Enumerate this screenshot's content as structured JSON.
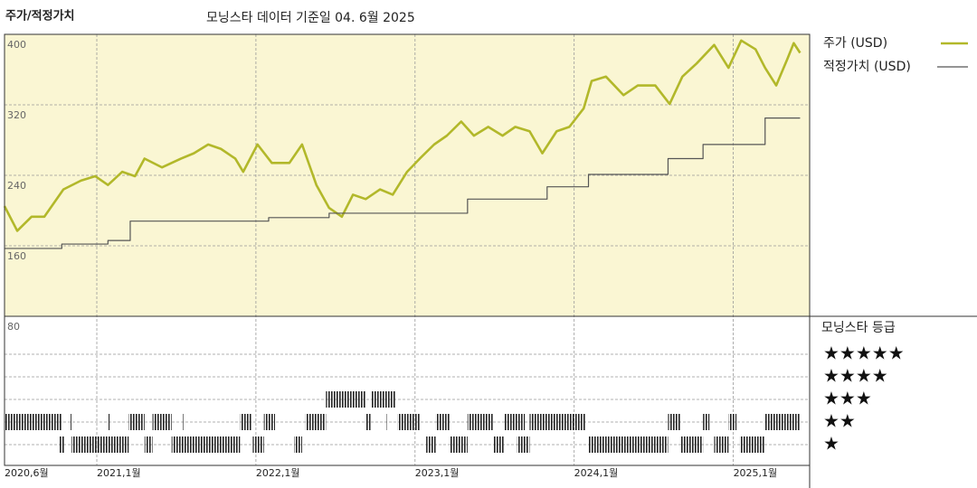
{
  "chart_data": {
    "type": "line",
    "title": "주가/적정가치",
    "subtitle": "모닝스타 데이터 기준일 04. 6월 2025",
    "xlim": [
      2020.42,
      2025.48
    ],
    "ylim": [
      80,
      400
    ],
    "xticks": [
      {
        "value": 2020.42,
        "label": "2020,6월"
      },
      {
        "value": 2021,
        "label": "2021,1월"
      },
      {
        "value": 2022,
        "label": "2022,1월"
      },
      {
        "value": 2023,
        "label": "2023,1월"
      },
      {
        "value": 2024,
        "label": "2024,1월"
      },
      {
        "value": 2025,
        "label": "2025,1월"
      }
    ],
    "yticks": [
      400,
      320,
      240,
      160,
      80
    ],
    "grid": true,
    "series": [
      {
        "name": "주가 (USD)",
        "color": "#b2b82a",
        "step": false,
        "x": [
          2020.42,
          2020.5,
          2020.59,
          2020.67,
          2020.79,
          2020.9,
          2020.99,
          2021.07,
          2021.16,
          2021.24,
          2021.3,
          2021.41,
          2021.53,
          2021.61,
          2021.7,
          2021.78,
          2021.87,
          2021.92,
          2022.01,
          2022.1,
          2022.21,
          2022.29,
          2022.38,
          2022.46,
          2022.54,
          2022.61,
          2022.69,
          2022.78,
          2022.86,
          2022.95,
          2023.03,
          2023.12,
          2023.2,
          2023.29,
          2023.37,
          2023.46,
          2023.55,
          2023.63,
          2023.72,
          2023.8,
          2023.89,
          2023.97,
          2024.06,
          2024.11,
          2024.2,
          2024.31,
          2024.4,
          2024.51,
          2024.6,
          2024.68,
          2024.77,
          2024.88,
          2024.97,
          2025.05,
          2025.14,
          2025.2,
          2025.27,
          2025.34,
          2025.38,
          2025.42
        ],
        "values": [
          205,
          177,
          193,
          193,
          224,
          234,
          239,
          229,
          244,
          239,
          259,
          249,
          259,
          265,
          275,
          270,
          259,
          244,
          275,
          254,
          254,
          275,
          229,
          203,
          193,
          218,
          213,
          224,
          218,
          244,
          259,
          275,
          285,
          301,
          285,
          295,
          285,
          295,
          290,
          265,
          290,
          295,
          316,
          347,
          352,
          331,
          342,
          342,
          321,
          352,
          367,
          388,
          362,
          393,
          383,
          362,
          342,
          372,
          390,
          379
        ]
      },
      {
        "name": "적정가치 (USD)",
        "color": "#555555",
        "step": true,
        "x": [
          2020.42,
          2020.78,
          2021.07,
          2021.21,
          2022.08,
          2022.46,
          2023.33,
          2023.83,
          2024.09,
          2024.59,
          2024.81,
          2025.2,
          2025.42
        ],
        "values": [
          157,
          162,
          166,
          188,
          192,
          197,
          213,
          227,
          241,
          259,
          275,
          305,
          305
        ]
      }
    ],
    "ratings": {
      "title": "모닝스타 등급",
      "rows": [
        {
          "stars": 5,
          "label": "★★★★★",
          "periods": []
        },
        {
          "stars": 4,
          "label": "★★★★",
          "periods": []
        },
        {
          "stars": 3,
          "label": "★★★",
          "periods": [
            [
              2022.44,
              2022.69
            ],
            [
              2022.72,
              2022.88
            ]
          ]
        },
        {
          "stars": 2,
          "label": "★★",
          "periods": [
            [
              2020.42,
              2020.78
            ],
            [
              2020.83,
              2020.84
            ],
            [
              2021.07,
              2021.08
            ],
            [
              2021.2,
              2021.3
            ],
            [
              2021.35,
              2021.47
            ],
            [
              2021.54,
              2021.55
            ],
            [
              2021.9,
              2021.97
            ],
            [
              2022.05,
              2022.12
            ],
            [
              2022.31,
              2022.44
            ],
            [
              2022.69,
              2022.72
            ],
            [
              2022.82,
              2022.83
            ],
            [
              2022.89,
              2023.03
            ],
            [
              2023.13,
              2023.22
            ],
            [
              2023.33,
              2023.49
            ],
            [
              2023.56,
              2023.69
            ],
            [
              2023.72,
              2024.07
            ],
            [
              2024.59,
              2024.67
            ],
            [
              2024.81,
              2024.85
            ],
            [
              2024.97,
              2025.02
            ],
            [
              2025.2,
              2025.42
            ]
          ]
        },
        {
          "stars": 1,
          "label": "★",
          "periods": [
            [
              2020.76,
              2020.8
            ],
            [
              2020.84,
              2021.2
            ],
            [
              2021.3,
              2021.35
            ],
            [
              2021.47,
              2021.9
            ],
            [
              2021.98,
              2022.05
            ],
            [
              2022.24,
              2022.29
            ],
            [
              2023.07,
              2023.13
            ],
            [
              2023.22,
              2023.33
            ],
            [
              2023.49,
              2023.56
            ],
            [
              2023.64,
              2023.72
            ],
            [
              2024.09,
              2024.59
            ],
            [
              2024.67,
              2024.81
            ],
            [
              2024.88,
              2024.97
            ],
            [
              2025.04,
              2025.2
            ]
          ]
        }
      ]
    }
  }
}
